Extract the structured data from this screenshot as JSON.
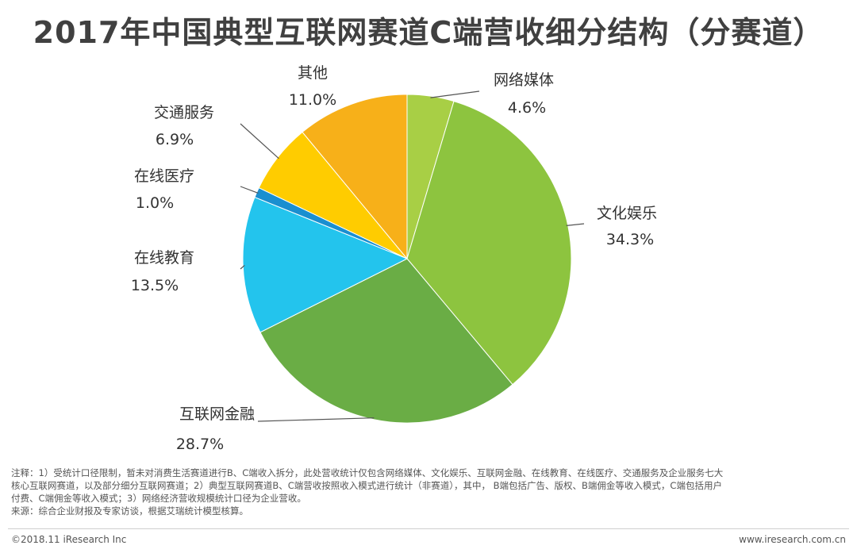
{
  "title": "2017年中国典型互联网赛道C端营收细分结构（分赛道）",
  "chart_data": {
    "type": "pie",
    "title": "2017年中国典型互联网赛道C端营收细分结构（分赛道）",
    "unit": "%",
    "slices": [
      {
        "label": "网络媒体",
        "value": 4.6,
        "value_label": "4.6%",
        "color": "#a8cf45"
      },
      {
        "label": "文化娱乐",
        "value": 34.3,
        "value_label": "34.3%",
        "color": "#8dc43f"
      },
      {
        "label": "互联网金融",
        "value": 28.7,
        "value_label": "28.7%",
        "color": "#6aad45"
      },
      {
        "label": "在线教育",
        "value": 13.5,
        "value_label": "13.5%",
        "color": "#23c4ed"
      },
      {
        "label": "在线医疗",
        "value": 1.0,
        "value_label": "1.0%",
        "color": "#1a8fd0"
      },
      {
        "label": "交通服务",
        "value": 6.9,
        "value_label": "6.9%",
        "color": "#ffcc00"
      },
      {
        "label": "其他",
        "value": 11.0,
        "value_label": "11.0%",
        "color": "#f7b019"
      }
    ]
  },
  "notes": {
    "line1": "注释：1）受统计口径限制，暂未对消费生活赛道进行B、C端收入拆分，此处营收统计仅包含网络媒体、文化娱乐、互联网金融、在线教育、在线医疗、交通服务及企业服务七大",
    "line2": "核心互联网赛道，以及部分细分互联网赛道；2）典型互联网赛道B、C端营收按照收入模式进行统计（非赛道），其中， B端包括广告、版权、B端佣金等收入模式，C端包括用户",
    "line3": "付费、C端佣金等收入模式；3）网络经济营收规模统计口径为企业营收。",
    "source": "来源：综合企业财报及专家访谈，根据艾瑞统计模型核算。"
  },
  "footer": {
    "copyright": "©2018.11 iResearch Inc",
    "website": "www.iresearch.com.cn"
  }
}
